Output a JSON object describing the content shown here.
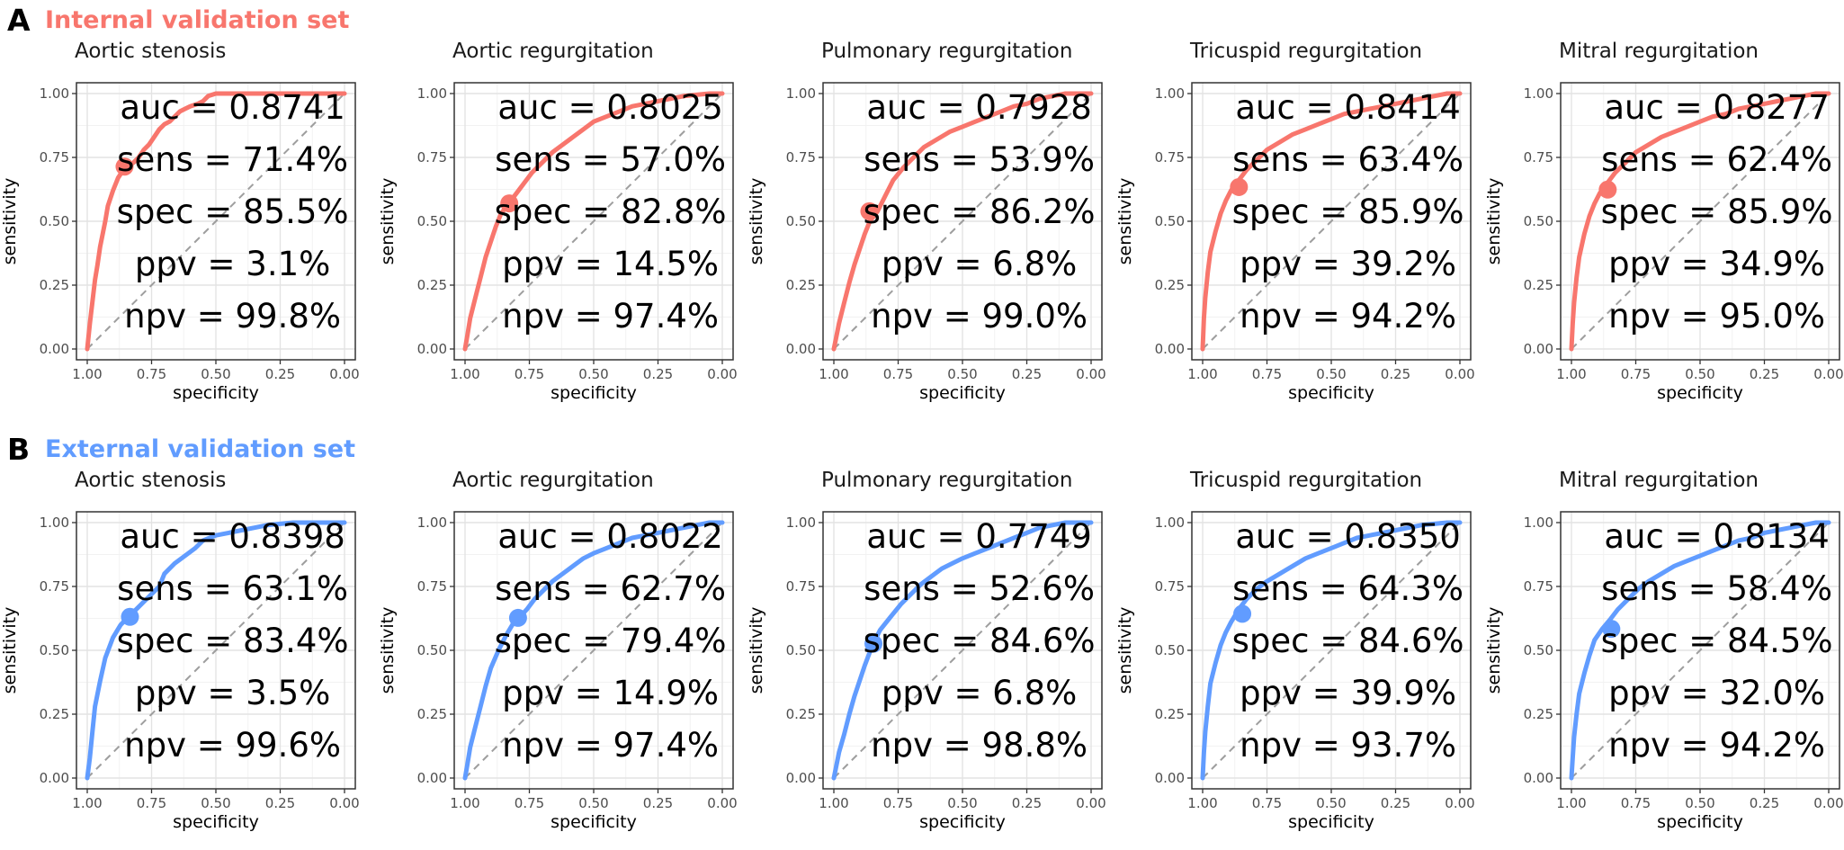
{
  "figure": {
    "panels": [
      {
        "letter": "A",
        "title": "Internal validation set",
        "color": "#f8766d"
      },
      {
        "letter": "B",
        "title": "External validation set",
        "color": "#619cff"
      }
    ]
  },
  "chart_data": [
    {
      "type": "line",
      "panel": "A",
      "title": "Aortic stenosis",
      "xlabel": "specificity",
      "ylabel": "sensitivity",
      "xlim": [
        1,
        0
      ],
      "ylim": [
        0,
        1
      ],
      "x_reversed": true,
      "grid": true,
      "x_ticks": [
        "1.00",
        "0.75",
        "0.50",
        "0.25",
        "0.00"
      ],
      "y_ticks": [
        "0.00",
        "0.25",
        "0.50",
        "0.75",
        "1.00"
      ],
      "reference_line": "dashed diagonal",
      "series": [
        {
          "x": [
            1.0,
            0.99,
            0.97,
            0.96,
            0.95,
            0.93,
            0.92,
            0.9,
            0.88,
            0.86,
            0.84,
            0.82,
            0.8,
            0.78,
            0.76,
            0.74,
            0.72,
            0.7,
            0.68,
            0.66,
            0.64,
            0.62,
            0.6,
            0.57,
            0.55,
            0.53,
            0.5,
            0.45,
            0.3,
            0.0
          ],
          "y": [
            0.0,
            0.1,
            0.27,
            0.33,
            0.4,
            0.5,
            0.56,
            0.62,
            0.67,
            0.7,
            0.714,
            0.73,
            0.75,
            0.78,
            0.8,
            0.83,
            0.86,
            0.88,
            0.89,
            0.91,
            0.93,
            0.94,
            0.95,
            0.96,
            0.97,
            0.99,
            1.0,
            1.0,
            1.0,
            1.0
          ]
        }
      ],
      "operating_point": {
        "specificity": 0.855,
        "sensitivity": 0.714
      },
      "metrics": [
        "auc = 0.8741",
        "sens = 71.4%",
        "spec = 85.5%",
        "ppv = 3.1%",
        "npv = 99.8%"
      ]
    },
    {
      "type": "line",
      "panel": "A",
      "title": "Aortic regurgitation",
      "xlabel": "specificity",
      "ylabel": "sensitivity",
      "xlim": [
        1,
        0
      ],
      "ylim": [
        0,
        1
      ],
      "x_reversed": true,
      "grid": true,
      "x_ticks": [
        "1.00",
        "0.75",
        "0.50",
        "0.25",
        "0.00"
      ],
      "y_ticks": [
        "0.00",
        "0.25",
        "0.50",
        "0.75",
        "1.00"
      ],
      "reference_line": "dashed diagonal",
      "series": [
        {
          "x": [
            1.0,
            0.99,
            0.98,
            0.96,
            0.94,
            0.92,
            0.9,
            0.88,
            0.86,
            0.83,
            0.8,
            0.77,
            0.74,
            0.7,
            0.66,
            0.62,
            0.58,
            0.54,
            0.5,
            0.45,
            0.4,
            0.35,
            0.3,
            0.25,
            0.2,
            0.15,
            0.1,
            0.05,
            0.0
          ],
          "y": [
            0.0,
            0.06,
            0.12,
            0.2,
            0.28,
            0.36,
            0.42,
            0.48,
            0.53,
            0.57,
            0.61,
            0.65,
            0.69,
            0.73,
            0.77,
            0.8,
            0.83,
            0.86,
            0.89,
            0.91,
            0.93,
            0.95,
            0.96,
            0.97,
            0.98,
            0.99,
            0.995,
            1.0,
            1.0
          ]
        }
      ],
      "operating_point": {
        "specificity": 0.828,
        "sensitivity": 0.57
      },
      "metrics": [
        "auc = 0.8025",
        "sens = 57.0%",
        "spec = 82.8%",
        "ppv = 14.5%",
        "npv = 97.4%"
      ]
    },
    {
      "type": "line",
      "panel": "A",
      "title": "Pulmonary regurgitation",
      "xlabel": "specificity",
      "ylabel": "sensitivity",
      "xlim": [
        1,
        0
      ],
      "ylim": [
        0,
        1
      ],
      "x_reversed": true,
      "grid": true,
      "x_ticks": [
        "1.00",
        "0.75",
        "0.50",
        "0.25",
        "0.00"
      ],
      "y_ticks": [
        "0.00",
        "0.25",
        "0.50",
        "0.75",
        "1.00"
      ],
      "reference_line": "dashed diagonal",
      "series": [
        {
          "x": [
            1.0,
            0.99,
            0.98,
            0.96,
            0.94,
            0.92,
            0.9,
            0.88,
            0.86,
            0.83,
            0.8,
            0.77,
            0.73,
            0.69,
            0.65,
            0.6,
            0.55,
            0.5,
            0.45,
            0.4,
            0.35,
            0.3,
            0.25,
            0.2,
            0.15,
            0.1,
            0.0
          ],
          "y": [
            0.0,
            0.05,
            0.1,
            0.18,
            0.26,
            0.33,
            0.39,
            0.45,
            0.5,
            0.539,
            0.6,
            0.66,
            0.71,
            0.75,
            0.79,
            0.82,
            0.85,
            0.87,
            0.89,
            0.91,
            0.93,
            0.95,
            0.96,
            0.98,
            0.99,
            1.0,
            1.0
          ]
        }
      ],
      "operating_point": {
        "specificity": 0.862,
        "sensitivity": 0.539
      },
      "metrics": [
        "auc = 0.7928",
        "sens = 53.9%",
        "spec = 86.2%",
        "ppv = 6.8%",
        "npv = 99.0%"
      ]
    },
    {
      "type": "line",
      "panel": "A",
      "title": "Tricuspid regurgitation",
      "xlabel": "specificity",
      "ylabel": "sensitivity",
      "xlim": [
        1,
        0
      ],
      "ylim": [
        0,
        1
      ],
      "x_reversed": true,
      "grid": true,
      "x_ticks": [
        "1.00",
        "0.75",
        "0.50",
        "0.25",
        "0.00"
      ],
      "y_ticks": [
        "0.00",
        "0.25",
        "0.50",
        "0.75",
        "1.00"
      ],
      "reference_line": "dashed diagonal",
      "series": [
        {
          "x": [
            1.0,
            0.995,
            0.99,
            0.98,
            0.97,
            0.95,
            0.93,
            0.91,
            0.89,
            0.86,
            0.83,
            0.79,
            0.75,
            0.7,
            0.65,
            0.6,
            0.55,
            0.5,
            0.45,
            0.4,
            0.35,
            0.3,
            0.25,
            0.2,
            0.15,
            0.1,
            0.05,
            0.0
          ],
          "y": [
            0.0,
            0.12,
            0.2,
            0.3,
            0.38,
            0.46,
            0.53,
            0.58,
            0.62,
            0.66,
            0.7,
            0.74,
            0.78,
            0.81,
            0.84,
            0.86,
            0.88,
            0.9,
            0.92,
            0.93,
            0.94,
            0.95,
            0.96,
            0.97,
            0.98,
            0.99,
            1.0,
            1.0
          ]
        }
      ],
      "operating_point": {
        "specificity": 0.859,
        "sensitivity": 0.634
      },
      "metrics": [
        "auc = 0.8414",
        "sens = 63.4%",
        "spec = 85.9%",
        "ppv = 39.2%",
        "npv = 94.2%"
      ]
    },
    {
      "type": "line",
      "panel": "A",
      "title": "Mitral regurgitation",
      "xlabel": "specificity",
      "ylabel": "sensitivity",
      "xlim": [
        1,
        0
      ],
      "ylim": [
        0,
        1
      ],
      "x_reversed": true,
      "grid": true,
      "x_ticks": [
        "1.00",
        "0.75",
        "0.50",
        "0.25",
        "0.00"
      ],
      "y_ticks": [
        "0.00",
        "0.25",
        "0.50",
        "0.75",
        "1.00"
      ],
      "reference_line": "dashed diagonal",
      "series": [
        {
          "x": [
            1.0,
            0.995,
            0.99,
            0.98,
            0.97,
            0.95,
            0.93,
            0.91,
            0.89,
            0.86,
            0.83,
            0.79,
            0.75,
            0.7,
            0.65,
            0.6,
            0.55,
            0.5,
            0.45,
            0.4,
            0.35,
            0.3,
            0.25,
            0.2,
            0.15,
            0.1,
            0.05,
            0.0
          ],
          "y": [
            0.0,
            0.1,
            0.18,
            0.28,
            0.36,
            0.45,
            0.52,
            0.57,
            0.61,
            0.65,
            0.69,
            0.73,
            0.77,
            0.8,
            0.83,
            0.85,
            0.87,
            0.89,
            0.91,
            0.92,
            0.94,
            0.95,
            0.96,
            0.97,
            0.98,
            0.99,
            1.0,
            1.0
          ]
        }
      ],
      "operating_point": {
        "specificity": 0.859,
        "sensitivity": 0.624
      },
      "metrics": [
        "auc = 0.8277",
        "sens = 62.4%",
        "spec = 85.9%",
        "ppv = 34.9%",
        "npv = 95.0%"
      ]
    },
    {
      "type": "line",
      "panel": "B",
      "title": "Aortic stenosis",
      "xlabel": "specificity",
      "ylabel": "sensitivity",
      "xlim": [
        1,
        0
      ],
      "ylim": [
        0,
        1
      ],
      "x_reversed": true,
      "grid": true,
      "x_ticks": [
        "1.00",
        "0.75",
        "0.50",
        "0.25",
        "0.00"
      ],
      "y_ticks": [
        "0.00",
        "0.25",
        "0.50",
        "0.75",
        "1.00"
      ],
      "reference_line": "dashed diagonal",
      "series": [
        {
          "x": [
            1.0,
            0.99,
            0.98,
            0.97,
            0.95,
            0.93,
            0.9,
            0.87,
            0.84,
            0.81,
            0.78,
            0.75,
            0.72,
            0.7,
            0.66,
            0.62,
            0.58,
            0.55,
            0.5,
            0.45,
            0.4,
            0.35,
            0.3,
            0.2,
            0.1,
            0.0
          ],
          "y": [
            0.0,
            0.08,
            0.18,
            0.28,
            0.38,
            0.47,
            0.55,
            0.6,
            0.631,
            0.66,
            0.69,
            0.72,
            0.75,
            0.8,
            0.84,
            0.87,
            0.9,
            0.93,
            0.95,
            0.96,
            0.97,
            0.98,
            0.99,
            1.0,
            1.0,
            1.0
          ]
        }
      ],
      "operating_point": {
        "specificity": 0.834,
        "sensitivity": 0.631
      },
      "metrics": [
        "auc = 0.8398",
        "sens = 63.1%",
        "spec = 83.4%",
        "ppv = 3.5%",
        "npv = 99.6%"
      ]
    },
    {
      "type": "line",
      "panel": "B",
      "title": "Aortic regurgitation",
      "xlabel": "specificity",
      "ylabel": "sensitivity",
      "xlim": [
        1,
        0
      ],
      "ylim": [
        0,
        1
      ],
      "x_reversed": true,
      "grid": true,
      "x_ticks": [
        "1.00",
        "0.75",
        "0.50",
        "0.25",
        "0.00"
      ],
      "y_ticks": [
        "0.00",
        "0.25",
        "0.50",
        "0.75",
        "1.00"
      ],
      "reference_line": "dashed diagonal",
      "series": [
        {
          "x": [
            1.0,
            0.99,
            0.98,
            0.96,
            0.94,
            0.92,
            0.9,
            0.87,
            0.84,
            0.81,
            0.79,
            0.76,
            0.73,
            0.7,
            0.66,
            0.62,
            0.58,
            0.54,
            0.5,
            0.45,
            0.4,
            0.35,
            0.3,
            0.25,
            0.2,
            0.15,
            0.1,
            0.05,
            0.0
          ],
          "y": [
            0.0,
            0.06,
            0.12,
            0.2,
            0.28,
            0.36,
            0.43,
            0.5,
            0.56,
            0.61,
            0.627,
            0.66,
            0.7,
            0.73,
            0.77,
            0.8,
            0.83,
            0.86,
            0.88,
            0.9,
            0.92,
            0.94,
            0.95,
            0.96,
            0.97,
            0.98,
            0.99,
            1.0,
            1.0
          ]
        }
      ],
      "operating_point": {
        "specificity": 0.794,
        "sensitivity": 0.627
      },
      "metrics": [
        "auc = 0.8022",
        "sens = 62.7%",
        "spec = 79.4%",
        "ppv = 14.9%",
        "npv = 97.4%"
      ]
    },
    {
      "type": "line",
      "panel": "B",
      "title": "Pulmonary regurgitation",
      "xlabel": "specificity",
      "ylabel": "sensitivity",
      "xlim": [
        1,
        0
      ],
      "ylim": [
        0,
        1
      ],
      "x_reversed": true,
      "grid": true,
      "x_ticks": [
        "1.00",
        "0.75",
        "0.50",
        "0.25",
        "0.00"
      ],
      "y_ticks": [
        "0.00",
        "0.25",
        "0.50",
        "0.75",
        "1.00"
      ],
      "reference_line": "dashed diagonal",
      "series": [
        {
          "x": [
            1.0,
            0.99,
            0.98,
            0.96,
            0.94,
            0.92,
            0.9,
            0.88,
            0.85,
            0.82,
            0.78,
            0.74,
            0.7,
            0.66,
            0.62,
            0.58,
            0.54,
            0.5,
            0.45,
            0.4,
            0.35,
            0.3,
            0.25,
            0.2,
            0.15,
            0.1,
            0.0
          ],
          "y": [
            0.0,
            0.05,
            0.1,
            0.17,
            0.25,
            0.32,
            0.38,
            0.44,
            0.52,
            0.58,
            0.63,
            0.68,
            0.72,
            0.76,
            0.79,
            0.82,
            0.84,
            0.86,
            0.88,
            0.9,
            0.92,
            0.94,
            0.96,
            0.98,
            0.99,
            1.0,
            1.0
          ]
        }
      ],
      "operating_point": {
        "specificity": 0.846,
        "sensitivity": 0.526
      },
      "metrics": [
        "auc = 0.7749",
        "sens = 52.6%",
        "spec = 84.6%",
        "ppv = 6.8%",
        "npv = 98.8%"
      ]
    },
    {
      "type": "line",
      "panel": "B",
      "title": "Tricuspid regurgitation",
      "xlabel": "specificity",
      "ylabel": "sensitivity",
      "xlim": [
        1,
        0
      ],
      "ylim": [
        0,
        1
      ],
      "x_reversed": true,
      "grid": true,
      "x_ticks": [
        "1.00",
        "0.75",
        "0.50",
        "0.25",
        "0.00"
      ],
      "y_ticks": [
        "0.00",
        "0.25",
        "0.50",
        "0.75",
        "1.00"
      ],
      "reference_line": "dashed diagonal",
      "series": [
        {
          "x": [
            1.0,
            0.995,
            0.99,
            0.98,
            0.97,
            0.95,
            0.93,
            0.91,
            0.89,
            0.86,
            0.83,
            0.79,
            0.75,
            0.7,
            0.65,
            0.6,
            0.55,
            0.5,
            0.45,
            0.4,
            0.35,
            0.3,
            0.25,
            0.2,
            0.15,
            0.1,
            0.05,
            0.0
          ],
          "y": [
            0.0,
            0.1,
            0.18,
            0.28,
            0.37,
            0.45,
            0.52,
            0.57,
            0.61,
            0.66,
            0.7,
            0.74,
            0.77,
            0.8,
            0.83,
            0.86,
            0.88,
            0.9,
            0.92,
            0.94,
            0.95,
            0.96,
            0.97,
            0.98,
            0.99,
            0.995,
            1.0,
            1.0
          ]
        }
      ],
      "operating_point": {
        "specificity": 0.846,
        "sensitivity": 0.643
      },
      "metrics": [
        "auc = 0.8350",
        "sens = 64.3%",
        "spec = 84.6%",
        "ppv = 39.9%",
        "npv = 93.7%"
      ]
    },
    {
      "type": "line",
      "panel": "B",
      "title": "Mitral regurgitation",
      "xlabel": "specificity",
      "ylabel": "sensitivity",
      "xlim": [
        1,
        0
      ],
      "ylim": [
        0,
        1
      ],
      "x_reversed": true,
      "grid": true,
      "x_ticks": [
        "1.00",
        "0.75",
        "0.50",
        "0.25",
        "0.00"
      ],
      "y_ticks": [
        "0.00",
        "0.25",
        "0.50",
        "0.75",
        "1.00"
      ],
      "reference_line": "dashed diagonal",
      "series": [
        {
          "x": [
            1.0,
            0.995,
            0.99,
            0.98,
            0.97,
            0.95,
            0.93,
            0.91,
            0.88,
            0.85,
            0.82,
            0.78,
            0.74,
            0.7,
            0.65,
            0.6,
            0.55,
            0.5,
            0.45,
            0.4,
            0.35,
            0.3,
            0.25,
            0.2,
            0.15,
            0.1,
            0.05,
            0.0
          ],
          "y": [
            0.0,
            0.08,
            0.16,
            0.25,
            0.33,
            0.41,
            0.48,
            0.54,
            0.584,
            0.62,
            0.66,
            0.7,
            0.74,
            0.77,
            0.8,
            0.83,
            0.85,
            0.87,
            0.89,
            0.91,
            0.93,
            0.94,
            0.96,
            0.97,
            0.98,
            0.99,
            1.0,
            1.0
          ]
        }
      ],
      "operating_point": {
        "specificity": 0.845,
        "sensitivity": 0.584
      },
      "metrics": [
        "auc = 0.8134",
        "sens = 58.4%",
        "spec = 84.5%",
        "ppv = 32.0%",
        "npv = 94.2%"
      ]
    }
  ]
}
